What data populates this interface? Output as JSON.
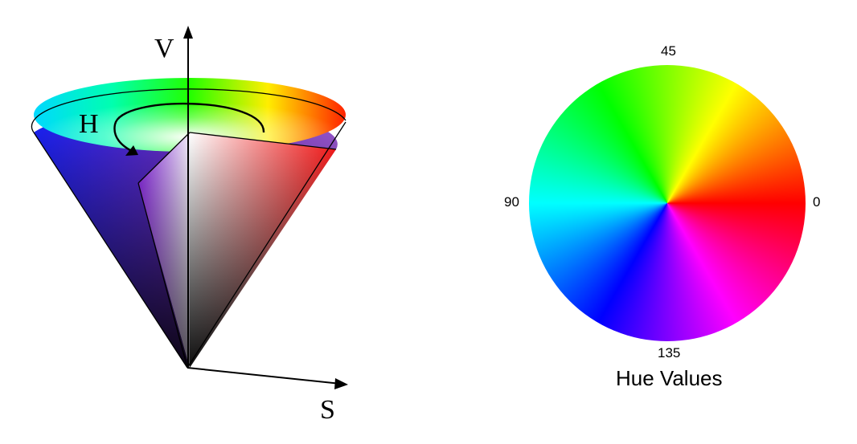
{
  "cone": {
    "axis_v_label": "V",
    "axis_h_label": "H",
    "axis_s_label": "S"
  },
  "hue_wheel": {
    "tick_labels": {
      "top": "45",
      "left": "90",
      "right": "0",
      "bottom": "135"
    },
    "caption": "Hue Values"
  },
  "colors": {
    "red": "#ff0000",
    "yellow": "#ffff00",
    "green": "#00ff00",
    "cyan": "#00ffff",
    "blue": "#0000ff",
    "magenta": "#ff00ff",
    "outline": "#000000"
  }
}
